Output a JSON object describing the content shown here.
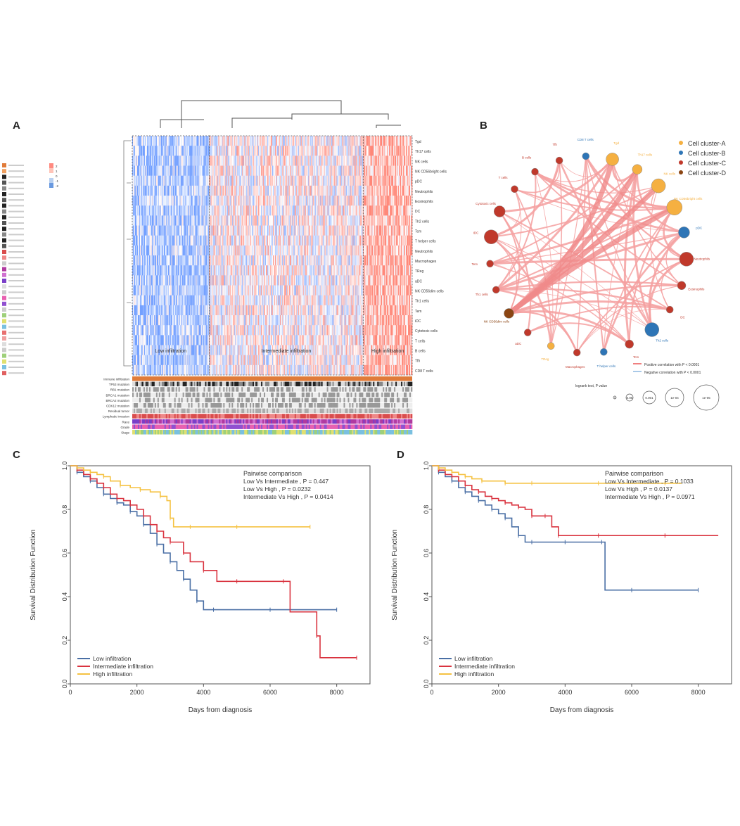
{
  "panels": {
    "a": {
      "label": "A"
    },
    "b": {
      "label": "B"
    },
    "c": {
      "label": "C"
    },
    "d": {
      "label": "D"
    }
  },
  "heatmap": {
    "cell_types": [
      "Tgd",
      "Th17 cells",
      "NK cells",
      "NK CD56bright cells",
      "pDC",
      "Neutrophils",
      "Eosinophils",
      "DC",
      "Th2 cells",
      "Tcm",
      "T helper cells",
      "Neutrophils",
      "Macrophages",
      "TReg",
      "aDC",
      "NK CD56dim cells",
      "Th1 cells",
      "Tem",
      "iDC",
      "Cytotoxic cells",
      "T cells",
      "B cells",
      "Tfh",
      "CD8 T cells"
    ],
    "clusters": [
      {
        "label": "Low infiltration",
        "columns": 110,
        "bias": -0.55
      },
      {
        "label": "Intermediate infiltration",
        "columns": 220,
        "bias": 0.05
      },
      {
        "label": "High infiltration",
        "columns": 70,
        "bias": 0.6
      }
    ],
    "annotation_rows": [
      "Immune infiltration",
      "TP53 mutation",
      "RB1 mutation",
      "BRCA1 mutation",
      "BRCA2 mutation",
      "CDK12 mutation",
      "Residual tumor",
      "Lymphatic invasion",
      "Race",
      "Grade",
      "Stage"
    ],
    "legend_color_scale": [
      "2",
      "1",
      "0",
      "-1",
      "-2"
    ]
  },
  "network": {
    "legend": [
      {
        "label": "Cell cluster-A",
        "color": "#f5b041"
      },
      {
        "label": "Cell cluster-B",
        "color": "#2e75b6"
      },
      {
        "label": "Cell cluster-C",
        "color": "#c0392b"
      },
      {
        "label": "Cell cluster-D",
        "color": "#8b4513"
      }
    ],
    "edge_legend": [
      {
        "label": "Positive correlation with P < 0.0001",
        "color": "#f08080"
      },
      {
        "label": "Negative correlation with P < 0.0001",
        "color": "#a9c9e8"
      }
    ],
    "size_legend": {
      "title": "logrank test, P value",
      "values": [
        "1",
        "0.05",
        "0.001",
        "1e-04",
        "1e-05"
      ]
    },
    "nodes": [
      {
        "name": "Tgd",
        "cluster": 0
      },
      {
        "name": "Th17 cells",
        "cluster": 0
      },
      {
        "name": "NK cells",
        "cluster": 0
      },
      {
        "name": "NK CD56bright cells",
        "cluster": 0
      },
      {
        "name": "pDC",
        "cluster": 1
      },
      {
        "name": "Neutrophils",
        "cluster": 2
      },
      {
        "name": "Eosinophils",
        "cluster": 2
      },
      {
        "name": "DC",
        "cluster": 2
      },
      {
        "name": "Th2 cells",
        "cluster": 1
      },
      {
        "name": "Tcm",
        "cluster": 2
      },
      {
        "name": "T helper cells",
        "cluster": 1
      },
      {
        "name": "Macrophages",
        "cluster": 2
      },
      {
        "name": "TReg",
        "cluster": 0
      },
      {
        "name": "aDC",
        "cluster": 2
      },
      {
        "name": "NK CD56dim cells",
        "cluster": 3
      },
      {
        "name": "Th1 cells",
        "cluster": 2
      },
      {
        "name": "Tem",
        "cluster": 2
      },
      {
        "name": "iDC",
        "cluster": 2
      },
      {
        "name": "Cytotoxic cells",
        "cluster": 2
      },
      {
        "name": "T cells",
        "cluster": 2
      },
      {
        "name": "B cells",
        "cluster": 2
      },
      {
        "name": "Tfh",
        "cluster": 2
      },
      {
        "name": "CD8 T cells",
        "cluster": 1
      }
    ]
  },
  "chart_data": [
    {
      "type": "line",
      "panel": "C",
      "xlabel": "Days from diagnosis",
      "ylabel": "Survival Distribution Function",
      "xlim": [
        0,
        9000
      ],
      "ylim": [
        0,
        1
      ],
      "xticks": [
        0,
        2000,
        4000,
        6000,
        8000
      ],
      "yticks": [
        0.0,
        0.2,
        0.4,
        0.6,
        0.8,
        1.0
      ],
      "annotation": {
        "title": "Pairwise comparison",
        "lines": [
          "Low Vs Intermediate , P = 0.447",
          "Low Vs High , P = 0.0232",
          "Intermediate Vs High , P = 0.0414"
        ]
      },
      "legend_position": "bottom-left",
      "series": [
        {
          "name": "Low infiltration",
          "color": "#4a6fa5",
          "x": [
            0,
            200,
            400,
            600,
            800,
            1000,
            1200,
            1400,
            1600,
            1800,
            2000,
            2200,
            2400,
            2600,
            2800,
            3000,
            3200,
            3400,
            3600,
            3800,
            4000,
            4300,
            5000,
            6000,
            7000,
            8000
          ],
          "y": [
            1.0,
            0.97,
            0.95,
            0.93,
            0.9,
            0.87,
            0.85,
            0.83,
            0.82,
            0.79,
            0.77,
            0.73,
            0.69,
            0.64,
            0.6,
            0.56,
            0.52,
            0.48,
            0.43,
            0.38,
            0.34,
            0.34,
            0.34,
            0.34,
            0.34,
            0.34
          ]
        },
        {
          "name": "Intermediate infiltration",
          "color": "#d9333f",
          "x": [
            0,
            200,
            400,
            600,
            800,
            1000,
            1200,
            1400,
            1600,
            1800,
            2000,
            2200,
            2400,
            2600,
            2800,
            3000,
            3200,
            3400,
            3600,
            4000,
            4400,
            5000,
            5800,
            6400,
            6600,
            7400,
            7500,
            8600
          ],
          "y": [
            1.0,
            0.98,
            0.96,
            0.94,
            0.92,
            0.9,
            0.87,
            0.85,
            0.84,
            0.82,
            0.8,
            0.77,
            0.73,
            0.7,
            0.67,
            0.65,
            0.65,
            0.6,
            0.56,
            0.52,
            0.47,
            0.47,
            0.47,
            0.47,
            0.33,
            0.22,
            0.12,
            0.12
          ]
        },
        {
          "name": "High infiltration",
          "color": "#f5c242",
          "x": [
            0,
            200,
            400,
            600,
            800,
            1000,
            1200,
            1500,
            1800,
            2100,
            2400,
            2700,
            2900,
            3000,
            3100,
            3600,
            4300,
            5000,
            6000,
            7200
          ],
          "y": [
            1.0,
            0.99,
            0.98,
            0.97,
            0.96,
            0.95,
            0.93,
            0.91,
            0.9,
            0.89,
            0.88,
            0.86,
            0.84,
            0.76,
            0.72,
            0.72,
            0.72,
            0.72,
            0.72,
            0.72
          ]
        }
      ]
    },
    {
      "type": "line",
      "panel": "D",
      "xlabel": "Days from diagnosis",
      "ylabel": "Survival Distribution Function",
      "xlim": [
        0,
        9000
      ],
      "ylim": [
        0,
        1
      ],
      "xticks": [
        0,
        2000,
        4000,
        6000,
        8000
      ],
      "yticks": [
        0.0,
        0.2,
        0.4,
        0.6,
        0.8,
        1.0
      ],
      "annotation": {
        "title": "Pairwise comparison",
        "lines": [
          "Low Vs Intermediate , P = 0.1033",
          "Low Vs High , P = 0.0137",
          "Intermediate Vs High , P = 0.0971"
        ]
      },
      "legend_position": "bottom-left",
      "series": [
        {
          "name": "Low infiltration",
          "color": "#4a6fa5",
          "x": [
            0,
            200,
            400,
            600,
            800,
            1000,
            1200,
            1400,
            1600,
            1800,
            2000,
            2200,
            2400,
            2600,
            2800,
            3000,
            3400,
            4000,
            4600,
            5100,
            5200,
            6000,
            7000,
            8000
          ],
          "y": [
            1.0,
            0.97,
            0.95,
            0.93,
            0.9,
            0.88,
            0.86,
            0.84,
            0.82,
            0.8,
            0.78,
            0.76,
            0.72,
            0.68,
            0.65,
            0.65,
            0.65,
            0.65,
            0.65,
            0.65,
            0.43,
            0.43,
            0.43,
            0.43
          ]
        },
        {
          "name": "Intermediate infiltration",
          "color": "#d9333f",
          "x": [
            0,
            200,
            400,
            600,
            800,
            1000,
            1200,
            1400,
            1600,
            1800,
            2000,
            2200,
            2400,
            2600,
            2800,
            3000,
            3200,
            3400,
            3600,
            3800,
            4000,
            5000,
            6000,
            7000,
            8600
          ],
          "y": [
            1.0,
            0.98,
            0.96,
            0.95,
            0.93,
            0.91,
            0.89,
            0.88,
            0.86,
            0.85,
            0.84,
            0.83,
            0.82,
            0.81,
            0.8,
            0.77,
            0.77,
            0.77,
            0.72,
            0.68,
            0.68,
            0.68,
            0.68,
            0.68,
            0.68
          ]
        },
        {
          "name": "High infiltration",
          "color": "#f5c242",
          "x": [
            0,
            200,
            400,
            600,
            800,
            1000,
            1200,
            1500,
            1800,
            2200,
            2600,
            3000,
            4000,
            5000,
            6000,
            7000,
            7500
          ],
          "y": [
            1.0,
            0.99,
            0.98,
            0.97,
            0.96,
            0.95,
            0.94,
            0.93,
            0.93,
            0.92,
            0.92,
            0.92,
            0.92,
            0.92,
            0.92,
            0.92,
            0.92
          ]
        }
      ]
    }
  ]
}
